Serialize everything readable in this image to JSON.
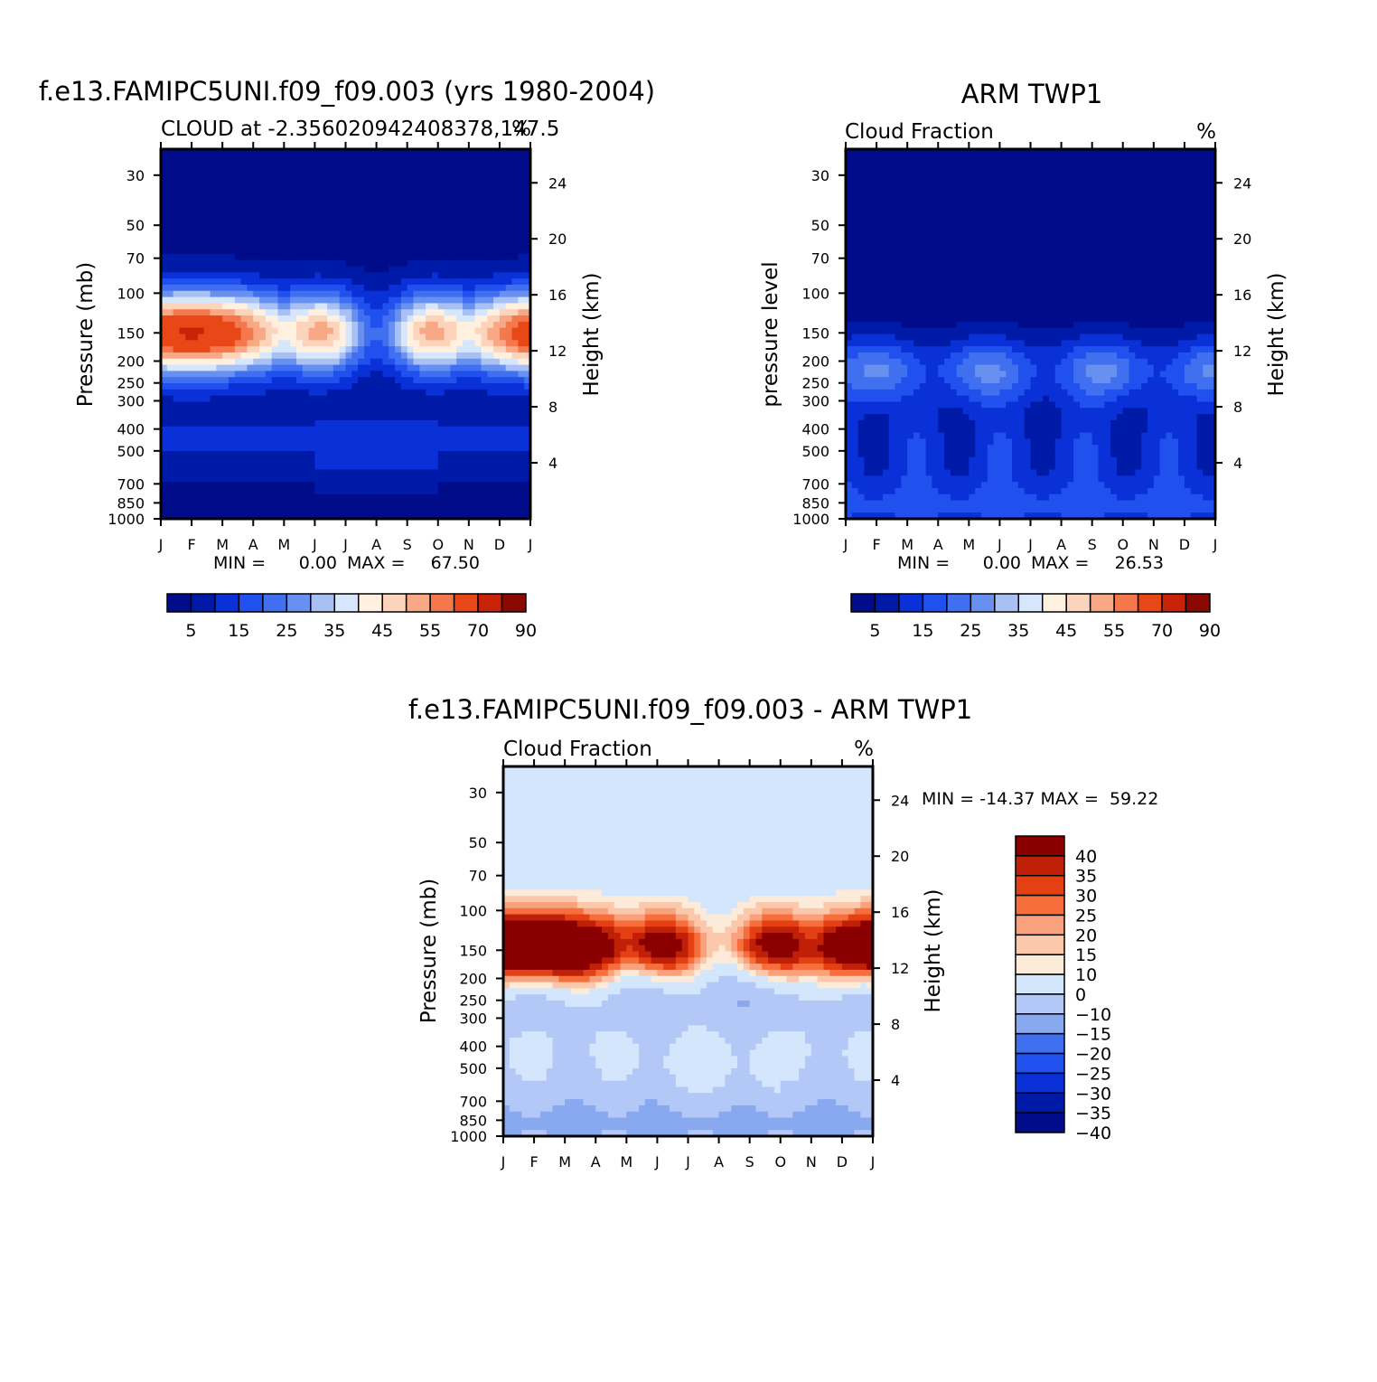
{
  "colors": {
    "seq_scale": [
      "#000c8a",
      "#001aa8",
      "#0a30d8",
      "#2050ee",
      "#4070f0",
      "#6890f0",
      "#a8c0f4",
      "#d6e6fc",
      "#fff0e0",
      "#fcd4bc",
      "#f8a884",
      "#f4784c",
      "#e84818",
      "#c82208",
      "#8a0a02"
    ],
    "diff_scale": [
      "#000c8a",
      "#001aa8",
      "#0a30d8",
      "#2050ee",
      "#4070f0",
      "#88a8f0",
      "#b4c8f8",
      "#d4e6fc",
      "#fdebda",
      "#fcc8ac",
      "#f9a07c",
      "#f56e3c",
      "#e44014",
      "#c02008",
      "#8a0000"
    ]
  },
  "panels": {
    "model": {
      "title": "f.e13.FAMIPC5UNI.f09_f09.003 (yrs 1980-2004)",
      "subtitle": "CLOUD at -2.356020942408378,147.5",
      "unit": "%",
      "ylabel_left": "Pressure (mb)",
      "ylabel_right": "Height (km)",
      "min_text": "MIN =",
      "min_value": "0.00",
      "max_text": "MAX =",
      "max_value": "67.50"
    },
    "obs": {
      "title": "ARM TWP1",
      "subtitle": "Cloud Fraction",
      "unit": "%",
      "ylabel_left": "pressure level",
      "ylabel_right": "Height (km)",
      "min_text": "MIN =",
      "min_value": "0.00",
      "max_text": "MAX =",
      "max_value": "26.53"
    },
    "diff": {
      "title": "f.e13.FAMIPC5UNI.f09_f09.003 - ARM TWP1",
      "subtitle": "Cloud Fraction",
      "unit": "%",
      "ylabel_left": "Pressure (mb)",
      "ylabel_right": "Height (km)",
      "minmax_text": "MIN = -14.37 MAX =  59.22"
    }
  },
  "chart_data": [
    {
      "type": "heatmap",
      "x": [
        "J",
        "F",
        "M",
        "A",
        "M",
        "J",
        "J",
        "A",
        "S",
        "O",
        "N",
        "D",
        "J"
      ],
      "y_pressure_mb": [
        1000,
        850,
        700,
        500,
        400,
        300,
        250,
        200,
        150,
        100,
        70,
        50,
        30
      ],
      "y_height_km": [
        4,
        8,
        12,
        16,
        20,
        24
      ],
      "min": 0.0,
      "max": 67.5,
      "colorbar_labels": [
        "5",
        "15",
        "25",
        "35",
        "45",
        "55",
        "70",
        "90"
      ],
      "levels": [
        5,
        10,
        15,
        20,
        25,
        30,
        35,
        40,
        45,
        50,
        55,
        60,
        70,
        80,
        90
      ],
      "peak_ranges": "upper troposphere maximum near 150 mb, Jan-Jun and Sep-Jan"
    },
    {
      "type": "heatmap",
      "x": [
        "J",
        "F",
        "M",
        "A",
        "M",
        "J",
        "J",
        "A",
        "S",
        "O",
        "N",
        "D",
        "J"
      ],
      "y_pressure_mb": [
        1000,
        850,
        700,
        500,
        400,
        300,
        250,
        200,
        150,
        100,
        70,
        50,
        30
      ],
      "y_height_km": [
        4,
        8,
        12,
        16,
        20,
        24
      ],
      "min": 0.0,
      "max": 26.53,
      "colorbar_labels": [
        "5",
        "15",
        "25",
        "35",
        "45",
        "55",
        "70",
        "90"
      ],
      "levels": [
        5,
        10,
        15,
        20,
        25,
        30,
        35,
        40,
        45,
        50,
        55,
        60,
        70,
        80,
        90
      ]
    },
    {
      "type": "heatmap",
      "x": [
        "J",
        "F",
        "M",
        "A",
        "M",
        "J",
        "J",
        "A",
        "S",
        "O",
        "N",
        "D",
        "J"
      ],
      "y_pressure_mb": [
        1000,
        850,
        700,
        500,
        400,
        300,
        250,
        200,
        150,
        100,
        70,
        50,
        30
      ],
      "y_height_km": [
        4,
        8,
        12,
        16,
        20,
        24
      ],
      "min": -14.37,
      "max": 59.22,
      "colorbar_labels": [
        "40",
        "35",
        "30",
        "25",
        "20",
        "15",
        "10",
        "0",
        "-10",
        "-15",
        "-20",
        "-25",
        "-30",
        "-35",
        "-40"
      ],
      "levels": [
        -40,
        -35,
        -30,
        -25,
        -20,
        -15,
        -10,
        0,
        10,
        15,
        20,
        25,
        30,
        35,
        40
      ]
    }
  ]
}
